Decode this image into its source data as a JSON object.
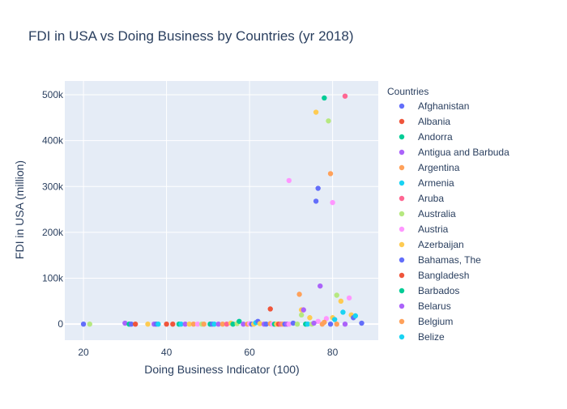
{
  "chart_data": {
    "type": "scatter",
    "title": "FDI in USA vs Doing Business by Countries (yr 2018)",
    "xlabel": "Doing Business Indicator (100)",
    "ylabel": "FDI in USA (million)",
    "xlim": [
      15.5,
      91
    ],
    "ylim": [
      -35000,
      530000
    ],
    "x_ticks": [
      20,
      40,
      60,
      80
    ],
    "y_ticks": [
      0,
      100000,
      200000,
      300000,
      400000,
      500000
    ],
    "y_tick_labels": [
      "0",
      "100k",
      "200k",
      "300k",
      "400k",
      "500k"
    ],
    "grid": true,
    "legend": {
      "title": "Countries",
      "placement": "right",
      "entries": [
        {
          "name": "Afghanistan",
          "color": "#636efa"
        },
        {
          "name": "Albania",
          "color": "#ef553b"
        },
        {
          "name": "Andorra",
          "color": "#00cc96"
        },
        {
          "name": "Antigua and Barbuda",
          "color": "#ab63fa"
        },
        {
          "name": "Argentina",
          "color": "#ffa15a"
        },
        {
          "name": "Armenia",
          "color": "#19d3f3"
        },
        {
          "name": "Aruba",
          "color": "#ff6692"
        },
        {
          "name": "Australia",
          "color": "#b6e880"
        },
        {
          "name": "Austria",
          "color": "#ff97ff"
        },
        {
          "name": "Azerbaijan",
          "color": "#fecb52"
        },
        {
          "name": "Bahamas, The",
          "color": "#636efa"
        },
        {
          "name": "Bangladesh",
          "color": "#ef553b"
        },
        {
          "name": "Barbados",
          "color": "#00cc96"
        },
        {
          "name": "Belarus",
          "color": "#ab63fa"
        },
        {
          "name": "Belgium",
          "color": "#ffa15a"
        },
        {
          "name": "Belize",
          "color": "#19d3f3"
        }
      ]
    },
    "palette": [
      "#636efa",
      "#ef553b",
      "#00cc96",
      "#ab63fa",
      "#ffa15a",
      "#19d3f3",
      "#ff6692",
      "#b6e880",
      "#ff97ff",
      "#fecb52"
    ],
    "points": [
      [
        20,
        0,
        0
      ],
      [
        21.5,
        0,
        7
      ],
      [
        30,
        2000,
        3
      ],
      [
        31,
        0,
        2
      ],
      [
        31.5,
        0,
        0
      ],
      [
        32.5,
        0,
        1
      ],
      [
        35.5,
        0,
        9
      ],
      [
        37,
        0,
        3
      ],
      [
        37.5,
        0,
        0
      ],
      [
        38,
        0,
        5
      ],
      [
        40,
        0,
        1
      ],
      [
        41.5,
        0,
        1
      ],
      [
        43,
        0,
        2
      ],
      [
        43.5,
        0,
        5
      ],
      [
        44.5,
        0,
        3
      ],
      [
        45.5,
        0,
        9
      ],
      [
        46.5,
        0,
        4
      ],
      [
        47.5,
        0,
        8
      ],
      [
        48.5,
        0,
        7
      ],
      [
        49,
        0,
        4
      ],
      [
        50.5,
        0,
        2
      ],
      [
        51,
        0,
        0
      ],
      [
        51.5,
        0,
        5
      ],
      [
        52.5,
        0,
        3
      ],
      [
        53.5,
        0,
        4
      ],
      [
        54.5,
        0,
        6
      ],
      [
        55.5,
        2000,
        9
      ],
      [
        56,
        0,
        2
      ],
      [
        57,
        1000,
        7
      ],
      [
        57.5,
        6000,
        2
      ],
      [
        58.5,
        0,
        3
      ],
      [
        59.5,
        0,
        4
      ],
      [
        60,
        1000,
        8
      ],
      [
        60.5,
        0,
        0
      ],
      [
        61,
        0,
        9
      ],
      [
        61.5,
        3000,
        5
      ],
      [
        62,
        6000,
        0
      ],
      [
        62.5,
        1000,
        9
      ],
      [
        63.5,
        0,
        3
      ],
      [
        64,
        0,
        0
      ],
      [
        65,
        33000,
        1
      ],
      [
        65,
        1000,
        4
      ],
      [
        65.5,
        0,
        8
      ],
      [
        66,
        0,
        2
      ],
      [
        66.5,
        0,
        9
      ],
      [
        67,
        0,
        1
      ],
      [
        67.5,
        0,
        6
      ],
      [
        68,
        0,
        4
      ],
      [
        68.5,
        0,
        0
      ],
      [
        69,
        0,
        3
      ],
      [
        69.5,
        0,
        8
      ],
      [
        70.5,
        2000,
        0
      ],
      [
        71.5,
        0,
        7
      ],
      [
        72,
        65000,
        4
      ],
      [
        72.5,
        31000,
        9
      ],
      [
        72.5,
        20000,
        7
      ],
      [
        73,
        31000,
        3
      ],
      [
        73.5,
        0,
        2
      ],
      [
        74,
        0,
        5
      ],
      [
        74.5,
        14000,
        9
      ],
      [
        75,
        0,
        7
      ],
      [
        76,
        462000,
        9
      ],
      [
        76.5,
        296000,
        0
      ],
      [
        76,
        268000,
        0
      ],
      [
        77,
        83000,
        3
      ],
      [
        77.5,
        0,
        4
      ],
      [
        78,
        493000,
        2
      ],
      [
        78.5,
        12000,
        8
      ],
      [
        79,
        443000,
        7
      ],
      [
        79.5,
        0,
        0
      ],
      [
        79.5,
        328000,
        4
      ],
      [
        80,
        265000,
        8
      ],
      [
        80,
        14000,
        9
      ],
      [
        80.5,
        10000,
        5
      ],
      [
        81,
        63000,
        7
      ],
      [
        81,
        0,
        4
      ],
      [
        82,
        50000,
        9
      ],
      [
        82.5,
        26000,
        5
      ],
      [
        83,
        497000,
        6
      ],
      [
        83,
        0,
        3
      ],
      [
        84,
        57000,
        8
      ],
      [
        84.5,
        20000,
        9
      ],
      [
        85,
        14000,
        0
      ],
      [
        85.5,
        18000,
        5
      ],
      [
        87,
        2000,
        0
      ],
      [
        69.5,
        313000,
        8
      ],
      [
        76.5,
        6000,
        8
      ],
      [
        78,
        4000,
        4
      ],
      [
        75.5,
        2000,
        3
      ]
    ]
  }
}
